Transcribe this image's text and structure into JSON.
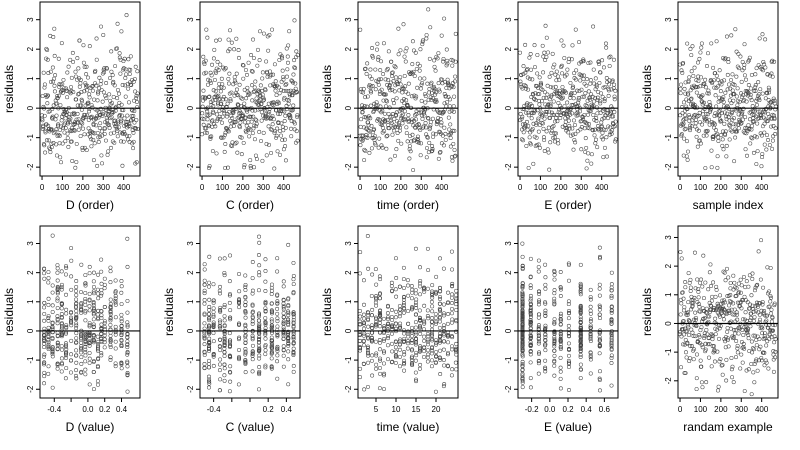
{
  "chart_data": [
    {
      "type": "scatter",
      "xlabel": "D (order)",
      "ylabel": "residuals",
      "xlim": [
        -10,
        480
      ],
      "ylim": [
        -2.3,
        3.6
      ],
      "xticks": [
        0,
        100,
        200,
        300,
        400
      ],
      "yticks": [
        -2,
        -1,
        0,
        1,
        2,
        3
      ],
      "reference_line": 0,
      "kind": "order",
      "seed": 11
    },
    {
      "type": "scatter",
      "xlabel": "C (order)",
      "ylabel": "residuals",
      "xlim": [
        -10,
        480
      ],
      "ylim": [
        -2.3,
        3.6
      ],
      "xticks": [
        0,
        100,
        200,
        300,
        400
      ],
      "yticks": [
        -2,
        -1,
        0,
        1,
        2,
        3
      ],
      "reference_line": 0,
      "kind": "order",
      "seed": 23
    },
    {
      "type": "scatter",
      "xlabel": "time (order)",
      "ylabel": "residuals",
      "xlim": [
        -10,
        480
      ],
      "ylim": [
        -2.3,
        3.6
      ],
      "xticks": [
        0,
        100,
        200,
        300,
        400
      ],
      "yticks": [
        -2,
        -1,
        0,
        1,
        2,
        3
      ],
      "reference_line": 0,
      "kind": "order",
      "seed": 37
    },
    {
      "type": "scatter",
      "xlabel": "E (order)",
      "ylabel": "residuals",
      "xlim": [
        -10,
        480
      ],
      "ylim": [
        -2.3,
        3.6
      ],
      "xticks": [
        0,
        100,
        200,
        300,
        400
      ],
      "yticks": [
        -2,
        -1,
        0,
        1,
        2,
        3
      ],
      "reference_line": 0,
      "kind": "order",
      "seed": 41
    },
    {
      "type": "scatter",
      "xlabel": "sample index",
      "ylabel": "residuals",
      "xlim": [
        -10,
        480
      ],
      "ylim": [
        -2.3,
        3.6
      ],
      "xticks": [
        0,
        100,
        200,
        300,
        400
      ],
      "yticks": [
        -2,
        -1,
        0,
        1,
        2,
        3
      ],
      "reference_line": 0,
      "kind": "order",
      "seed": 53
    },
    {
      "type": "scatter",
      "xlabel": "D (value)",
      "ylabel": "residuals",
      "xlim": [
        -0.57,
        0.62
      ],
      "ylim": [
        -2.3,
        3.6
      ],
      "xticks": [
        -0.4,
        -0.2,
        0.0,
        0.2,
        0.4
      ],
      "xtick_labels": [
        "-0.4",
        "",
        "0.0",
        "0.2",
        "0.4"
      ],
      "yticks": [
        -2,
        -1,
        0,
        1,
        2,
        3
      ],
      "reference_line": 0,
      "kind": "value",
      "levels": [
        -0.52,
        -0.47,
        -0.42,
        -0.36,
        -0.31,
        -0.26,
        -0.2,
        -0.14,
        -0.08,
        -0.03,
        0.02,
        0.07,
        0.12,
        0.16,
        0.2,
        0.27,
        0.33,
        0.4,
        0.47
      ],
      "seed": 61
    },
    {
      "type": "scatter",
      "xlabel": "C (value)",
      "ylabel": "residuals",
      "xlim": [
        -0.55,
        0.55
      ],
      "ylim": [
        -2.3,
        3.6
      ],
      "xticks": [
        -0.4,
        -0.2,
        0.0,
        0.2,
        0.4
      ],
      "xtick_labels": [
        "-0.4",
        "",
        "",
        "0.2",
        "0.4"
      ],
      "yticks": [
        -2,
        -1,
        0,
        1,
        2,
        3
      ],
      "reference_line": 0,
      "kind": "value",
      "levels": [
        -0.5,
        -0.45,
        -0.4,
        -0.33,
        -0.28,
        -0.22,
        -0.12,
        -0.05,
        0.03,
        0.1,
        0.17,
        0.24,
        0.3,
        0.37,
        0.42,
        0.48
      ],
      "seed": 71
    },
    {
      "type": "scatter",
      "xlabel": "time (value)",
      "ylabel": "residuals",
      "xlim": [
        0.5,
        25.5
      ],
      "ylim": [
        -2.3,
        3.6
      ],
      "xticks": [
        5,
        10,
        15,
        20
      ],
      "yticks": [
        -2,
        -1,
        0,
        1,
        2,
        3
      ],
      "reference_line": 0,
      "kind": "value",
      "levels": [
        1,
        2,
        3,
        4,
        5,
        6,
        7,
        8,
        9,
        10,
        11,
        12,
        13,
        14,
        15,
        16,
        17,
        18,
        19,
        20,
        21,
        22,
        23,
        24,
        25
      ],
      "seed": 83
    },
    {
      "type": "scatter",
      "xlabel": "E (value)",
      "ylabel": "residuals",
      "xlim": [
        -0.35,
        0.75
      ],
      "ylim": [
        -2.3,
        3.6
      ],
      "xticks": [
        -0.2,
        0.0,
        0.2,
        0.4,
        0.6
      ],
      "xtick_labels": [
        "-0.2",
        "0.0",
        "0.2",
        "0.4",
        "0.6"
      ],
      "yticks": [
        -2,
        -1,
        0,
        1,
        2,
        3
      ],
      "reference_line": 0,
      "kind": "value",
      "levels": [
        -0.3,
        -0.3,
        -0.3,
        -0.3,
        -0.21,
        -0.21,
        -0.12,
        -0.05,
        0.05,
        0.12,
        0.21,
        0.34,
        0.34,
        0.34,
        0.45,
        0.55,
        0.68
      ],
      "seed": 97
    },
    {
      "type": "scatter",
      "xlabel": "randam example",
      "ylabel": "residuals",
      "xlim": [
        -10,
        480
      ],
      "ylim": [
        -2.6,
        3.4
      ],
      "xticks": [
        0,
        100,
        200,
        300,
        400
      ],
      "yticks": [
        -2,
        -1,
        0,
        1,
        2,
        3
      ],
      "reference_line": 0,
      "kind": "random",
      "seed": 101
    }
  ]
}
